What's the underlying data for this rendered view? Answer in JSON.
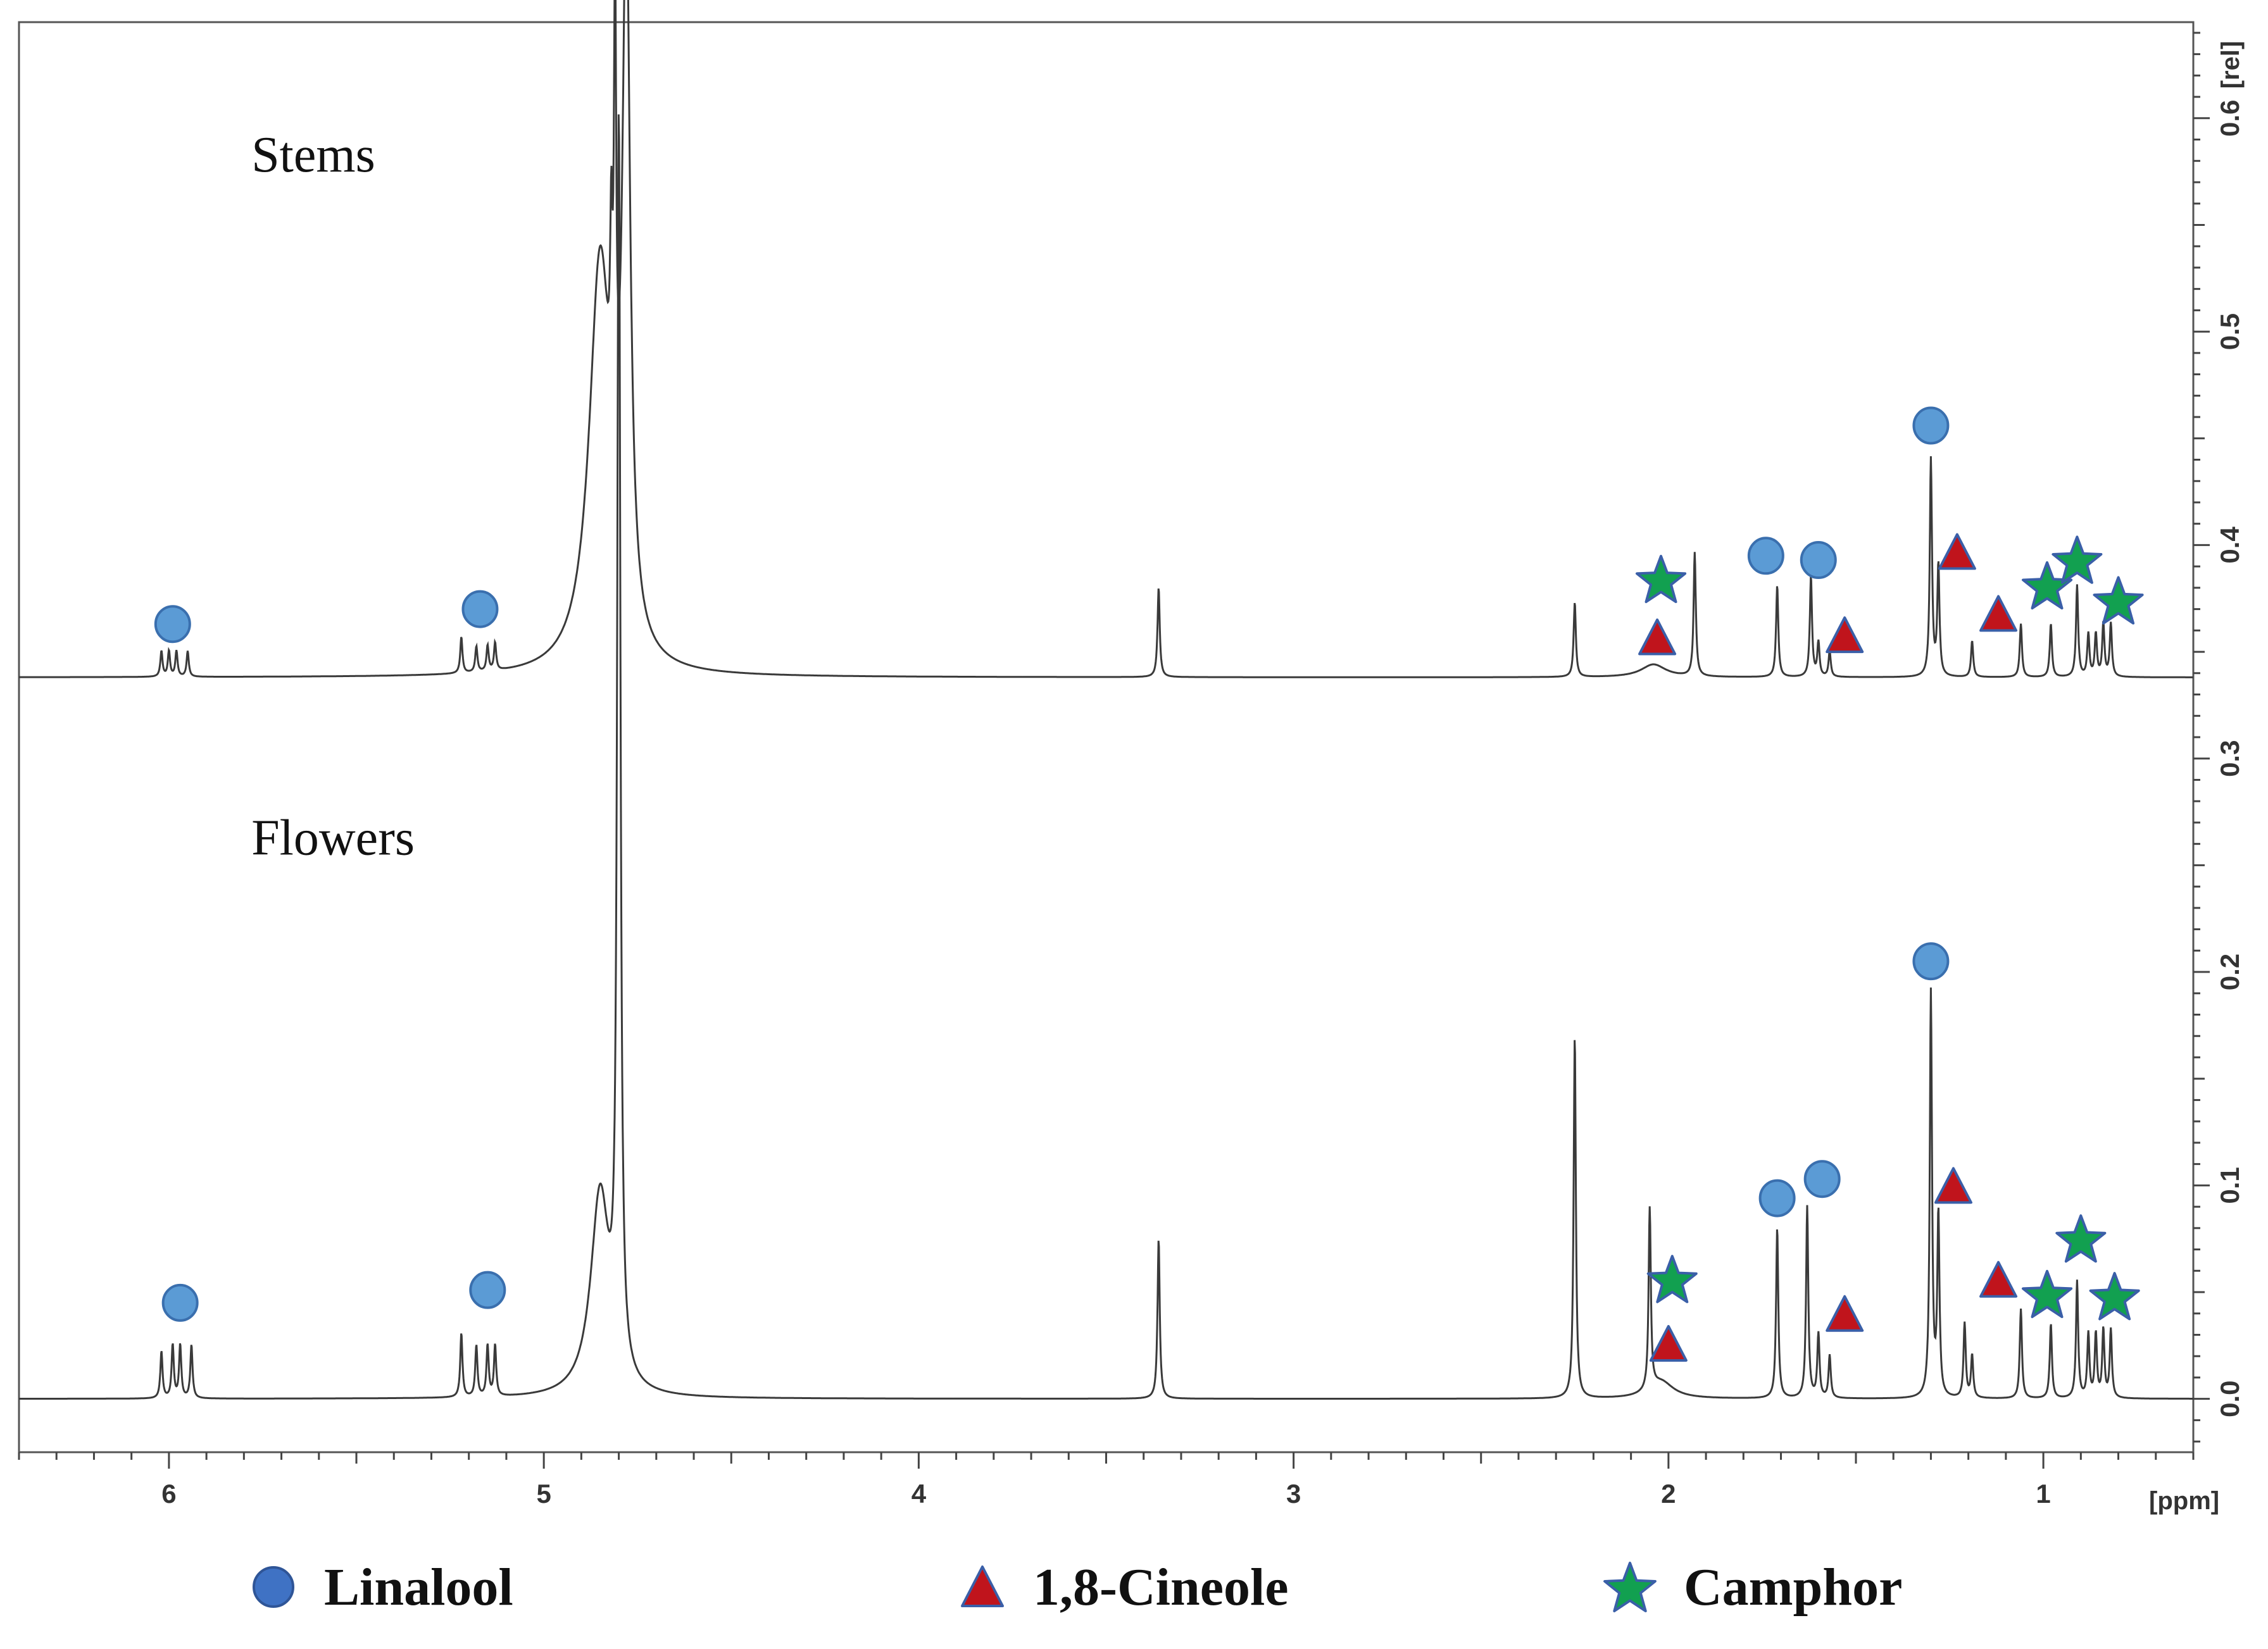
{
  "chart_data": {
    "type": "line",
    "title": "",
    "xlabel": "[ppm]",
    "ylabel": "[rel]",
    "xlim": [
      6.4,
      0.6
    ],
    "ylim": [
      -0.025,
      0.645
    ],
    "x_ticks": [
      {
        "value": 6,
        "label": "6"
      },
      {
        "value": 5,
        "label": "5"
      },
      {
        "value": 4,
        "label": "4"
      },
      {
        "value": 3,
        "label": "3"
      },
      {
        "value": 2,
        "label": "2"
      },
      {
        "value": 1,
        "label": "1"
      }
    ],
    "y_ticks": [
      {
        "value": 0.0,
        "label": "0.0"
      },
      {
        "value": 0.1,
        "label": "0.1"
      },
      {
        "value": 0.2,
        "label": "0.2"
      },
      {
        "value": 0.3,
        "label": "0.3"
      },
      {
        "value": 0.4,
        "label": "0.4"
      },
      {
        "value": 0.5,
        "label": "0.5"
      },
      {
        "value": 0.6,
        "label": "0.6"
      }
    ],
    "series": [
      {
        "name": "Stems",
        "baseline": 0.338,
        "peaks": [
          {
            "ppm": 6.02,
            "h": 0.012
          },
          {
            "ppm": 6.0,
            "h": 0.012
          },
          {
            "ppm": 5.98,
            "h": 0.012
          },
          {
            "ppm": 5.95,
            "h": 0.012
          },
          {
            "ppm": 5.22,
            "h": 0.017
          },
          {
            "ppm": 5.18,
            "h": 0.012
          },
          {
            "ppm": 5.15,
            "h": 0.012
          },
          {
            "ppm": 5.13,
            "h": 0.013
          },
          {
            "ppm": 4.85,
            "h": 0.19,
            "w": 0.035
          },
          {
            "ppm": 4.78,
            "h": 0.33,
            "w": 0.012
          },
          {
            "ppm": 4.81,
            "h": 0.21
          },
          {
            "ppm": 4.82,
            "h": 0.08
          },
          {
            "ppm": 3.36,
            "h": 0.042
          },
          {
            "ppm": 2.25,
            "h": 0.035
          },
          {
            "ppm": 2.04,
            "h": 0.006,
            "w": 0.04
          },
          {
            "ppm": 1.93,
            "h": 0.058
          },
          {
            "ppm": 1.71,
            "h": 0.043
          },
          {
            "ppm": 1.62,
            "h": 0.047
          },
          {
            "ppm": 1.6,
            "h": 0.016
          },
          {
            "ppm": 1.57,
            "h": 0.012
          },
          {
            "ppm": 1.3,
            "h": 0.102
          },
          {
            "ppm": 1.28,
            "h": 0.052
          },
          {
            "ppm": 1.19,
            "h": 0.017
          },
          {
            "ppm": 1.06,
            "h": 0.025
          },
          {
            "ppm": 0.98,
            "h": 0.025
          },
          {
            "ppm": 0.91,
            "h": 0.043
          },
          {
            "ppm": 0.88,
            "h": 0.02
          },
          {
            "ppm": 0.86,
            "h": 0.02
          },
          {
            "ppm": 0.84,
            "h": 0.025
          },
          {
            "ppm": 0.82,
            "h": 0.025
          }
        ]
      },
      {
        "name": "Flowers",
        "baseline": 0.0,
        "peaks": [
          {
            "ppm": 6.02,
            "h": 0.022
          },
          {
            "ppm": 5.99,
            "h": 0.025
          },
          {
            "ppm": 5.97,
            "h": 0.025
          },
          {
            "ppm": 5.94,
            "h": 0.025
          },
          {
            "ppm": 5.22,
            "h": 0.03
          },
          {
            "ppm": 5.18,
            "h": 0.024
          },
          {
            "ppm": 5.15,
            "h": 0.024
          },
          {
            "ppm": 5.13,
            "h": 0.024
          },
          {
            "ppm": 4.85,
            "h": 0.095,
            "w": 0.03
          },
          {
            "ppm": 4.8,
            "h": 0.58,
            "w": 0.005
          },
          {
            "ppm": 3.36,
            "h": 0.075
          },
          {
            "ppm": 2.25,
            "h": 0.17
          },
          {
            "ppm": 2.05,
            "h": 0.085
          },
          {
            "ppm": 2.02,
            "h": 0.008,
            "w": 0.04
          },
          {
            "ppm": 1.71,
            "h": 0.08
          },
          {
            "ppm": 1.63,
            "h": 0.09
          },
          {
            "ppm": 1.6,
            "h": 0.03
          },
          {
            "ppm": 1.57,
            "h": 0.02
          },
          {
            "ppm": 1.3,
            "h": 0.19
          },
          {
            "ppm": 1.28,
            "h": 0.085
          },
          {
            "ppm": 1.21,
            "h": 0.035
          },
          {
            "ppm": 1.19,
            "h": 0.02
          },
          {
            "ppm": 1.06,
            "h": 0.042
          },
          {
            "ppm": 0.98,
            "h": 0.035
          },
          {
            "ppm": 0.91,
            "h": 0.055
          },
          {
            "ppm": 0.88,
            "h": 0.03
          },
          {
            "ppm": 0.86,
            "h": 0.03
          },
          {
            "ppm": 0.84,
            "h": 0.032
          },
          {
            "ppm": 0.82,
            "h": 0.032
          }
        ]
      }
    ],
    "annotations": [
      {
        "text": "Stems",
        "ppm": 5.78,
        "y": 0.575
      },
      {
        "text": "Flowers",
        "ppm": 5.78,
        "y": 0.255
      }
    ],
    "markers": [
      {
        "type": "circle",
        "ppm": 5.99,
        "y": 0.363
      },
      {
        "type": "circle",
        "ppm": 5.17,
        "y": 0.37
      },
      {
        "type": "star",
        "ppm": 2.02,
        "y": 0.383
      },
      {
        "type": "triangle",
        "ppm": 2.03,
        "y": 0.357
      },
      {
        "type": "circle",
        "ppm": 1.74,
        "y": 0.395
      },
      {
        "type": "circle",
        "ppm": 1.6,
        "y": 0.393
      },
      {
        "type": "triangle",
        "ppm": 1.53,
        "y": 0.358
      },
      {
        "type": "circle",
        "ppm": 1.3,
        "y": 0.456
      },
      {
        "type": "triangle",
        "ppm": 1.23,
        "y": 0.397
      },
      {
        "type": "triangle",
        "ppm": 1.12,
        "y": 0.368
      },
      {
        "type": "star",
        "ppm": 0.99,
        "y": 0.38
      },
      {
        "type": "star",
        "ppm": 0.91,
        "y": 0.392
      },
      {
        "type": "star",
        "ppm": 0.8,
        "y": 0.373
      },
      {
        "type": "circle",
        "ppm": 5.97,
        "y": 0.045
      },
      {
        "type": "circle",
        "ppm": 5.15,
        "y": 0.051
      },
      {
        "type": "star",
        "ppm": 1.99,
        "y": 0.055
      },
      {
        "type": "triangle",
        "ppm": 2.0,
        "y": 0.026
      },
      {
        "type": "circle",
        "ppm": 1.71,
        "y": 0.094
      },
      {
        "type": "circle",
        "ppm": 1.59,
        "y": 0.103
      },
      {
        "type": "triangle",
        "ppm": 1.53,
        "y": 0.04
      },
      {
        "type": "circle",
        "ppm": 1.3,
        "y": 0.205
      },
      {
        "type": "triangle",
        "ppm": 1.24,
        "y": 0.1
      },
      {
        "type": "triangle",
        "ppm": 1.12,
        "y": 0.056
      },
      {
        "type": "star",
        "ppm": 0.99,
        "y": 0.048
      },
      {
        "type": "star",
        "ppm": 0.9,
        "y": 0.074
      },
      {
        "type": "star",
        "ppm": 0.81,
        "y": 0.047
      }
    ]
  },
  "legend": [
    {
      "symbol": "circle",
      "label": "Linalool",
      "color": "#3f72c4"
    },
    {
      "symbol": "triangle",
      "label": "1,8-Cineole",
      "color": "#c0141c"
    },
    {
      "symbol": "star",
      "label": "Camphor",
      "color": "#12a050"
    }
  ],
  "colors": {
    "circle_fill": "#5b9bd5",
    "circle_stroke": "#3a6fae",
    "triangle_fill": "#c0141c",
    "triangle_stroke": "#3a5fa8",
    "star_fill": "#12a050",
    "star_stroke": "#3a5fa8",
    "spectrum": "#3a3a3a"
  }
}
